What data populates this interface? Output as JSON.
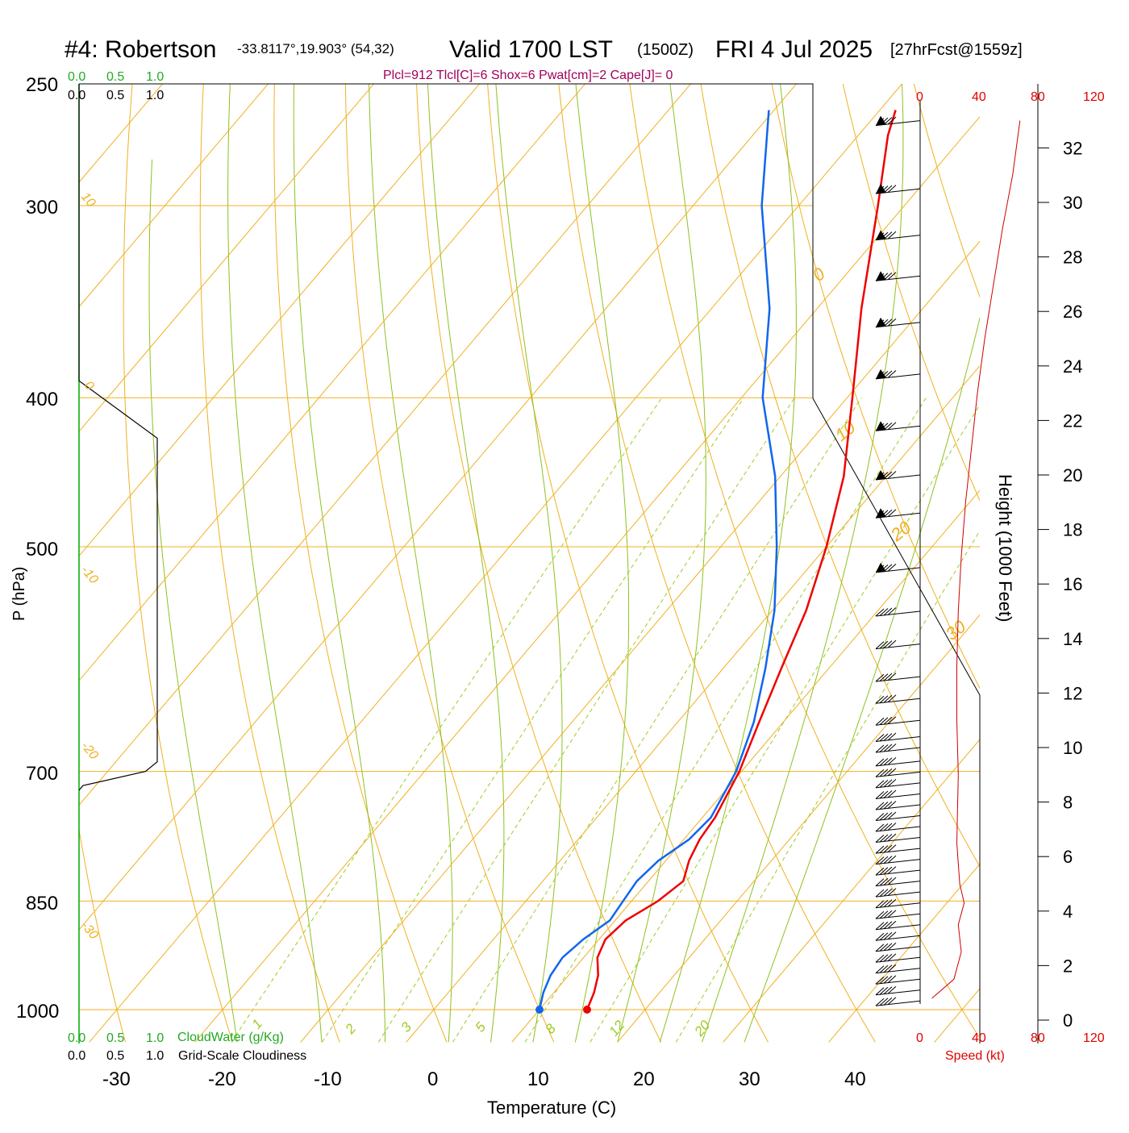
{
  "header": {
    "station": "#4: Robertson",
    "coords": "-33.8117°,19.903° (54,32)",
    "valid": "Valid 1700 LST",
    "utc": "(1500Z)",
    "date": "FRI 4 Jul 2025",
    "fcst": "[27hrFcst@1559z]",
    "indices": "Plcl=912 Tlcl[C]=6 Shox=6 Pwat[cm]=2 Cape[J]= 0"
  },
  "colors": {
    "temperature": "#ee0000",
    "dewpoint": "#1166ee",
    "isotherm": "#f0b020",
    "isobar": "#f0b020",
    "dry_adiabat": "#f0b020",
    "moist_adiabat": "#8ec020",
    "mixing_ratio": "#9ccc20",
    "cloud_water": "#00aa00",
    "cloudiness": "#000000",
    "wind_speed": "#cc0000",
    "indices_text": "#a0005a"
  },
  "chart_data": {
    "type": "line",
    "subtype": "skew-T log-P sounding",
    "xlabel": "Temperature (C)",
    "ylabel": "P (hPa)",
    "x_ticks": [
      -30,
      -20,
      -10,
      0,
      10,
      20,
      30,
      40
    ],
    "p_ticks": [
      250,
      300,
      400,
      500,
      700,
      850,
      1000
    ],
    "ylim": [
      1050,
      250
    ],
    "log_scale_y": true,
    "series": [
      {
        "key": "temperature",
        "points": [
          [
            1000,
            14.5
          ],
          [
            975,
            13.8
          ],
          [
            950,
            12.8
          ],
          [
            925,
            11.3
          ],
          [
            900,
            10.6
          ],
          [
            875,
            11.0
          ],
          [
            850,
            12.5
          ],
          [
            825,
            13.3
          ],
          [
            800,
            12.2
          ],
          [
            775,
            11.5
          ],
          [
            750,
            11.2
          ],
          [
            700,
            9.8
          ],
          [
            650,
            7.7
          ],
          [
            600,
            5.5
          ],
          [
            550,
            3.2
          ],
          [
            500,
            0.0
          ],
          [
            450,
            -4.0
          ],
          [
            400,
            -9.5
          ],
          [
            350,
            -15.8
          ],
          [
            300,
            -22.5
          ],
          [
            270,
            -27.2
          ],
          [
            260,
            -28.5
          ]
        ]
      },
      {
        "key": "dewpoint",
        "points": [
          [
            1000,
            10.0
          ],
          [
            975,
            9.0
          ],
          [
            950,
            8.3
          ],
          [
            925,
            8.0
          ],
          [
            900,
            8.5
          ],
          [
            875,
            9.5
          ],
          [
            850,
            9.2
          ],
          [
            825,
            8.9
          ],
          [
            800,
            9.3
          ],
          [
            775,
            10.5
          ],
          [
            750,
            10.8
          ],
          [
            700,
            9.5
          ],
          [
            650,
            7.2
          ],
          [
            600,
            4.0
          ],
          [
            550,
            0.2
          ],
          [
            500,
            -4.7
          ],
          [
            450,
            -10.5
          ],
          [
            400,
            -18.0
          ],
          [
            350,
            -24.5
          ],
          [
            300,
            -33.5
          ],
          [
            260,
            -40.5
          ]
        ]
      }
    ],
    "annotations": {
      "isotherm_labels": [
        "0",
        "10",
        "20",
        "30"
      ],
      "left_side_labels": [
        "10",
        "0",
        "-10",
        "-20",
        "-30"
      ],
      "mixing_ratio_labels": [
        "1",
        "2",
        "3",
        "5",
        "8",
        "12",
        "20"
      ]
    },
    "cloud_axis": {
      "top_green_labels": [
        "0.0",
        "0.5",
        "1.0"
      ],
      "top_black_labels": [
        "0.0",
        "0.5",
        "1.0"
      ],
      "bottom_green_labels": [
        "0.0",
        "0.5",
        "1.0"
      ],
      "bottom_black_labels": [
        "0.0",
        "0.5",
        "1.0"
      ],
      "cloud_water_label": "CloudWater (g/Kg)",
      "cloudiness_label": "Grid-Scale Cloudiness",
      "cloudiness_profile": [
        [
          250,
          0.0
        ],
        [
          370,
          0.0
        ],
        [
          390,
          0.0
        ],
        [
          425,
          1.0
        ],
        [
          690,
          1.0
        ],
        [
          700,
          0.85
        ],
        [
          715,
          0.05
        ],
        [
          720,
          0.0
        ]
      ]
    },
    "wind_panel": {
      "speed_axis_labels": [
        "0",
        "40",
        "80",
        "120"
      ],
      "speed_axis_title": "Speed (kt)",
      "height_axis_title": "Height (1000 Feet)",
      "height_ticks": [
        "0",
        "2",
        "4",
        "6",
        "8",
        "10",
        "12",
        "14",
        "16",
        "18",
        "20",
        "22",
        "24",
        "26",
        "28",
        "30",
        "32"
      ],
      "speed_profile": [
        [
          0.8,
          8
        ],
        [
          1.5,
          23
        ],
        [
          2.5,
          28
        ],
        [
          3.5,
          26
        ],
        [
          4.3,
          30
        ],
        [
          5.0,
          27
        ],
        [
          6.5,
          25
        ],
        [
          9.0,
          26
        ],
        [
          11,
          25
        ],
        [
          13,
          25
        ],
        [
          15,
          26
        ],
        [
          17,
          28
        ],
        [
          19,
          31
        ],
        [
          21,
          35
        ],
        [
          23,
          39
        ],
        [
          25,
          44
        ],
        [
          27,
          50
        ],
        [
          29,
          56
        ],
        [
          31,
          63
        ],
        [
          33,
          68
        ]
      ],
      "barb_heights_kft": [
        33,
        30.5,
        28.8,
        27.3,
        25.6,
        23.7,
        21.8,
        20.0,
        18.6,
        16.6,
        15.0,
        13.8,
        12.6,
        11.8,
        11.0,
        10.4,
        10.0,
        9.5,
        9.1,
        8.7,
        8.3,
        7.9,
        7.5,
        7.1,
        6.7,
        6.3,
        5.9,
        5.5,
        5.1,
        4.7,
        4.3,
        3.9,
        3.5,
        3.1,
        2.7,
        2.3,
        1.9,
        1.5,
        1.1,
        0.7
      ]
    }
  }
}
